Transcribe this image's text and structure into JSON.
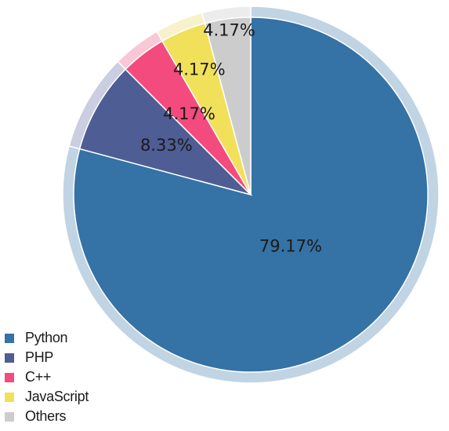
{
  "chart_data": {
    "type": "pie",
    "categories": [
      "Python",
      "PHP",
      "C++",
      "JavaScript",
      "Others"
    ],
    "values": [
      79.17,
      8.33,
      4.17,
      4.17,
      4.17
    ],
    "labels": [
      "79.17%",
      "8.33%",
      "4.17%",
      "4.17%",
      "4.17%"
    ],
    "colors": [
      "#3572a5",
      "#4f5d95",
      "#f34b7d",
      "#f1e05a",
      "#cccccc"
    ],
    "ring_colors": [
      "#c1d4e4",
      "#cacee0",
      "#f9c8d7",
      "#f8f2cc",
      "#ececec"
    ],
    "start_angle": "top (12 o'clock)",
    "direction": "clockwise",
    "legend_position": "bottom-left"
  },
  "legend": [
    {
      "label": "Python",
      "color": "#3572a5"
    },
    {
      "label": "PHP",
      "color": "#4f5d95"
    },
    {
      "label": "C++",
      "color": "#f34b7d"
    },
    {
      "label": "JavaScript",
      "color": "#f1e05a"
    },
    {
      "label": "Others",
      "color": "#cccccc"
    }
  ]
}
